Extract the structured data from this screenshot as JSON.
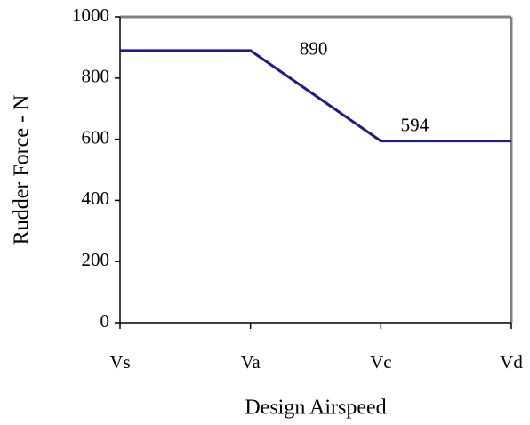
{
  "chart_data": {
    "type": "line",
    "x_label": "Design Airspeed",
    "y_label": "Rudder Force - N",
    "categories": [
      "Vs",
      "Va",
      "Vc",
      "Vd"
    ],
    "values": [
      890,
      890,
      594,
      594
    ],
    "value_labels": [
      null,
      "890",
      "594",
      null
    ],
    "color": "#1c1c8c",
    "ylim": [
      0,
      1000
    ],
    "yticks": [
      0,
      200,
      400,
      600,
      800,
      1000
    ],
    "grid": false
  }
}
